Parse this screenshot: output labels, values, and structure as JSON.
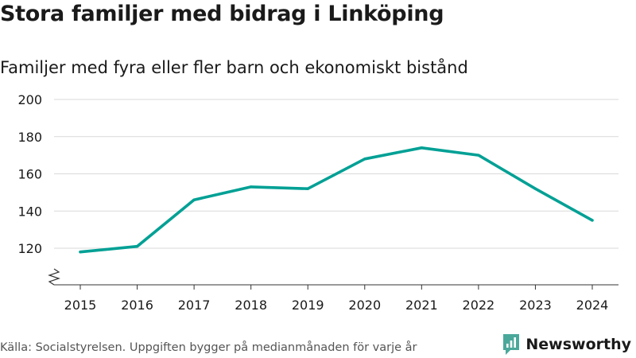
{
  "colors": {
    "line": "#00a095",
    "grid": "#d9d9d9",
    "axis": "#333333",
    "brand": "#4aa89b"
  },
  "source": "Källa: Socialstyrelsen. Uppgiften bygger på medianmånaden för varje år",
  "brand": {
    "name": "Newsworthy",
    "logo_icon": "bar-chart-icon"
  },
  "chart_data": {
    "type": "line",
    "title": "Stora familjer med bidrag i Linköping",
    "subtitle": "Familjer med fyra eller fler barn och ekonomiskt bistånd",
    "xlabel": "",
    "ylabel": "",
    "x": [
      2015,
      2016,
      2017,
      2018,
      2019,
      2020,
      2021,
      2022,
      2023,
      2024
    ],
    "x_labels": [
      "2015",
      "2016",
      "2017",
      "2018",
      "2019",
      "2020",
      "2021",
      "2022",
      "2023",
      "2024"
    ],
    "series": [
      {
        "name": "Familjer",
        "values": [
          118,
          121,
          146,
          153,
          152,
          168,
          174,
          170,
          152,
          135
        ]
      }
    ],
    "ylim": [
      100,
      200
    ],
    "y_ticks": [
      120,
      140,
      160,
      180,
      200
    ],
    "y_tick_labels": [
      "120",
      "140",
      "160",
      "180",
      "200"
    ],
    "axis_break": true,
    "grid": true,
    "legend": "none"
  }
}
